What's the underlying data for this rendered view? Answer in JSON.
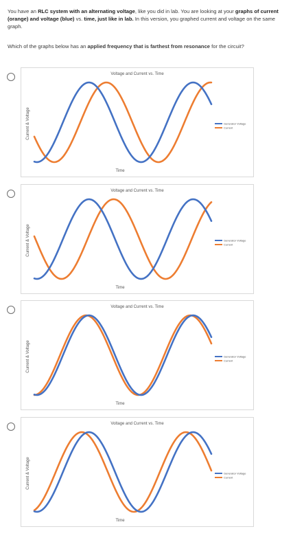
{
  "intro": {
    "p1": "You have an ",
    "b1": "RLC system with an alternating voltage",
    "p2": ", like you did in lab.  You are looking at your ",
    "b2": "graphs of current (orange) and voltage (blue)",
    "p3": " vs. ",
    "b3": "time, just like in lab.",
    "p4": " In this version, you graphed current and voltage on the same graph."
  },
  "question": {
    "p1": "Which of the graphs below has an ",
    "b1": "applied frequency that is farthest from resonance",
    "p2": " for the circuit?"
  },
  "colors": {
    "voltage": "#4472c4",
    "current": "#ed7d31"
  },
  "options": [
    {
      "title": "Voltage and Current vs. Time",
      "xlabel": "Time",
      "ylabel": "Current & Voltage",
      "legend": [
        "Generator Voltage",
        "Current"
      ]
    },
    {
      "title": "Voltage and Current vs. Time",
      "xlabel": "Time",
      "ylabel": "Current & Voltage",
      "legend": [
        "Generator Voltage",
        "Current"
      ]
    },
    {
      "title": "Voltage and Current vs. Time",
      "xlabel": "Time",
      "ylabel": "Current & Voltage",
      "legend": [
        "Generator Voltage",
        "Current"
      ]
    },
    {
      "title": "Voltage and Current vs. Time",
      "xlabel": "Time",
      "ylabel": "Current & Voltage",
      "legend": [
        "Generator Voltage",
        "Current"
      ]
    }
  ],
  "chart_data": [
    {
      "type": "line",
      "title": "Voltage and Current vs. Time",
      "xlabel": "Time",
      "ylabel": "Current & Voltage",
      "series": [
        {
          "name": "Generator Voltage",
          "phase_shift_deg": 0
        },
        {
          "name": "Current",
          "phase_shift_deg": -60
        }
      ],
      "periods": 1.7
    },
    {
      "type": "line",
      "title": "Voltage and Current vs. Time",
      "xlabel": "Time",
      "ylabel": "Current & Voltage",
      "series": [
        {
          "name": "Generator Voltage",
          "phase_shift_deg": 0
        },
        {
          "name": "Current",
          "phase_shift_deg": -85
        }
      ],
      "periods": 1.7
    },
    {
      "type": "line",
      "title": "Voltage and Current vs. Time",
      "xlabel": "Time",
      "ylabel": "Current & Voltage",
      "series": [
        {
          "name": "Generator Voltage",
          "phase_shift_deg": 0
        },
        {
          "name": "Current",
          "phase_shift_deg": 10
        }
      ],
      "periods": 1.7
    },
    {
      "type": "line",
      "title": "Voltage and Current vs. Time",
      "xlabel": "Time",
      "ylabel": "Current & Voltage",
      "series": [
        {
          "name": "Generator Voltage",
          "phase_shift_deg": 0
        },
        {
          "name": "Current",
          "phase_shift_deg": 25
        }
      ],
      "periods": 1.7
    }
  ]
}
